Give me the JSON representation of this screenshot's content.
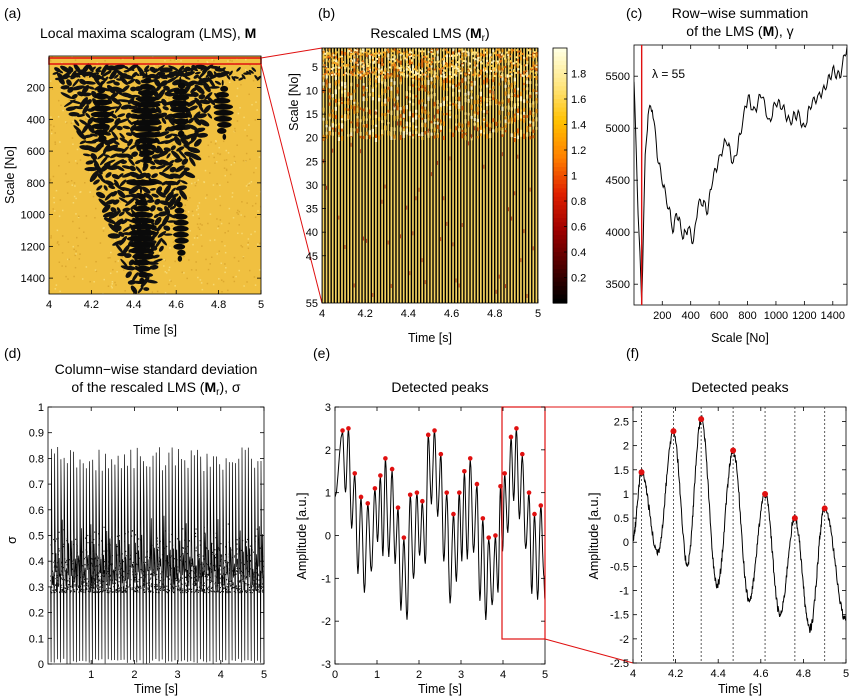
{
  "panels": {
    "a": {
      "label": "(a)",
      "title": "Local maxima scalogram (LMS), ",
      "title_bold": "M",
      "xlabel": "Time [s]",
      "ylabel": "Scale [No]",
      "xticks": [
        "4",
        "4.2",
        "4.4",
        "4.6",
        "4.8",
        "5"
      ],
      "yticks": [
        "200",
        "400",
        "600",
        "800",
        "1000",
        "1200",
        "1400"
      ],
      "bg_color": "#f0c040"
    },
    "b": {
      "label": "(b)",
      "title": "Rescaled LMS (",
      "title_bold": "M",
      "title_sub": "r",
      "title_end": ")",
      "xlabel": "Time [s]",
      "ylabel": "Scale [No]",
      "xticks": [
        "4",
        "4.2",
        "4.4",
        "4.6",
        "4.8",
        "5"
      ],
      "yticks": [
        "5",
        "10",
        "15",
        "20",
        "25",
        "30",
        "35",
        "40",
        "45",
        "55"
      ],
      "colorbar_ticks": [
        "1.8",
        "1.6",
        "1.4",
        "1.2",
        "1",
        "0.8",
        "0.6",
        "0.4",
        "0.2"
      ]
    },
    "c": {
      "label": "(c)",
      "title_line1": "Row−wise summation",
      "title_line2_pre": "of the LMS (",
      "title_bold": "M",
      "title_line2_post": "), γ",
      "xlabel": "Scale [No]",
      "annotation": "λ = 55",
      "xticks": [
        "200",
        "400",
        "600",
        "800",
        "1000",
        "1200",
        "1400"
      ],
      "yticks": [
        "5500",
        "5000",
        "4500",
        "4000",
        "3500"
      ]
    },
    "d": {
      "label": "(d)",
      "title_line1": "Column−wise standard deviation",
      "title_line2_pre": "of the rescaled LMS (",
      "title_bold": "M",
      "title_sub": "r",
      "title_line2_post": "), σ",
      "xlabel": "Time [s]",
      "ylabel": "σ",
      "xticks": [
        "1",
        "2",
        "3",
        "4",
        "5"
      ],
      "yticks": [
        "1",
        "0.9",
        "0.8",
        "0.7",
        "0.6",
        "0.5",
        "0.4",
        "0.3",
        "0.2",
        "0.1",
        "0"
      ]
    },
    "e": {
      "label": "(e)",
      "title": "Detected peaks",
      "xlabel": "Time [s]",
      "ylabel": "Amplitude [a.u.]",
      "xticks": [
        "0",
        "1",
        "2",
        "3",
        "4",
        "5"
      ],
      "yticks": [
        "3",
        "2",
        "1",
        "0",
        "-1",
        "-2",
        "-3"
      ]
    },
    "f": {
      "label": "(f)",
      "title": "Detected peaks",
      "xlabel": "Time [s]",
      "ylabel": "Amplitude [a.u.]",
      "xticks": [
        "4",
        "4.2",
        "4.4",
        "4.6",
        "4.8",
        "5"
      ],
      "yticks": [
        "2.5",
        "2",
        "1.5",
        "1",
        "0.5",
        "0",
        "-0.5",
        "-1",
        "-1.5",
        "-2",
        "-2.5"
      ]
    }
  },
  "colors": {
    "signal": "#000000",
    "peak": "#e01010",
    "highlight": "#e01010",
    "lms_bg": "#f0c040"
  },
  "chart_data": [
    {
      "type": "heatmap",
      "panel": "a",
      "xlim": [
        4,
        5
      ],
      "ylim": [
        1,
        1500
      ],
      "y_reversed": true
    },
    {
      "type": "heatmap",
      "panel": "b",
      "xlim": [
        4,
        5
      ],
      "ylim": [
        1,
        55
      ],
      "y_reversed": true,
      "colorbar_range": [
        0,
        2
      ]
    },
    {
      "type": "line",
      "panel": "c",
      "xlim": [
        1,
        1500
      ],
      "ylim": [
        3300,
        5800
      ],
      "vline_x": 55,
      "x": [
        1,
        30,
        55,
        80,
        100,
        130,
        170,
        200,
        250,
        280,
        300,
        350,
        380,
        420,
        450,
        480,
        520,
        550,
        600,
        650,
        700,
        750,
        800,
        850,
        900,
        950,
        1000,
        1050,
        1100,
        1150,
        1200,
        1250,
        1300,
        1350,
        1400,
        1450,
        1500
      ],
      "y": [
        5450,
        4200,
        3330,
        4700,
        5150,
        5200,
        4700,
        4500,
        4200,
        4000,
        4200,
        3950,
        4050,
        3900,
        4250,
        4300,
        4200,
        4500,
        4700,
        4900,
        4650,
        4950,
        5300,
        5150,
        5350,
        5050,
        5250,
        5200,
        5050,
        5150,
        5000,
        5250,
        5300,
        5400,
        5550,
        5500,
        5780
      ]
    },
    {
      "type": "line",
      "panel": "d",
      "xlim": [
        0,
        5
      ],
      "ylim": [
        0,
        1
      ],
      "cycles": 68,
      "band": {
        "low": 0.28,
        "high": 0.55,
        "peak_min": 0.75,
        "peak_max": 0.85,
        "dip_min": 0.0
      }
    },
    {
      "type": "line",
      "panel": "e",
      "xlim": [
        0,
        5
      ],
      "ylim": [
        -3,
        3
      ],
      "peaks_x": [
        0.18,
        0.32,
        0.47,
        0.62,
        0.78,
        0.95,
        1.08,
        1.2,
        1.36,
        1.5,
        1.64,
        1.79,
        1.95,
        2.08,
        2.22,
        2.37,
        2.52,
        2.66,
        2.82,
        2.96,
        3.08,
        3.22,
        3.38,
        3.52,
        3.66,
        3.82,
        3.94,
        4.04,
        4.19,
        4.32,
        4.46,
        4.62,
        4.75,
        4.9
      ],
      "peaks_y": [
        2.45,
        2.5,
        1.45,
        0.9,
        0.75,
        1.1,
        1.4,
        1.8,
        1.55,
        0.65,
        -0.05,
        0.95,
        1.0,
        0.8,
        2.35,
        2.45,
        1.9,
        1.0,
        0.5,
        1.0,
        1.5,
        1.8,
        1.2,
        0.4,
        -0.05,
        0.0,
        1.15,
        1.45,
        2.3,
        2.5,
        1.9,
        1.0,
        0.5,
        0.7
      ]
    },
    {
      "type": "line",
      "panel": "f",
      "xlim": [
        4,
        5
      ],
      "ylim": [
        -2.5,
        2.8
      ],
      "peaks_x": [
        4.04,
        4.19,
        4.32,
        4.47,
        4.62,
        4.76,
        4.9
      ],
      "peaks_y": [
        1.45,
        2.3,
        2.55,
        1.9,
        1.0,
        0.5,
        0.7
      ],
      "troughs_y": [
        0.1,
        -0.2,
        -0.45,
        -0.9,
        -1.2,
        -1.5,
        -1.8,
        -1.6
      ]
    }
  ]
}
